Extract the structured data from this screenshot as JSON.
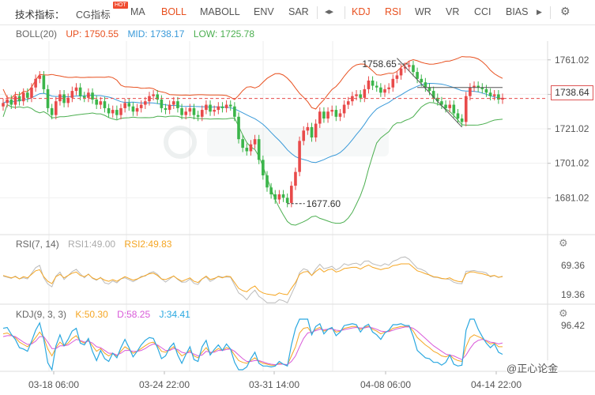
{
  "toolbar": {
    "label": "技术指标：",
    "items": [
      {
        "name": "cg",
        "label": "CG指标",
        "active": false
      },
      {
        "name": "ma",
        "label": "MA",
        "active": false
      },
      {
        "name": "boll",
        "label": "BOLL",
        "active": true
      },
      {
        "name": "maboll",
        "label": "MABOLL",
        "active": false
      },
      {
        "name": "env",
        "label": "ENV",
        "active": false
      },
      {
        "name": "sar",
        "label": "SAR",
        "active": false
      },
      {
        "name": "kdj",
        "label": "KDJ",
        "active": true
      },
      {
        "name": "rsi",
        "label": "RSI",
        "active": true
      },
      {
        "name": "wr",
        "label": "WR",
        "active": false
      },
      {
        "name": "vr",
        "label": "VR",
        "active": false
      },
      {
        "name": "cci",
        "label": "CCI",
        "active": false
      },
      {
        "name": "bias",
        "label": "BIAS",
        "active": false
      }
    ],
    "hot_badge": "HOT",
    "nav_icon": "left-right-arrows-icon",
    "next_icon": "play-right-icon",
    "settings_icon": "gear-icon"
  },
  "boll": {
    "title": "BOLL(20)",
    "up_label": "UP: 1750.55",
    "mid_label": "MID: 1738.17",
    "low_label": "LOW: 1725.78",
    "colors": {
      "up": "#e8501f",
      "mid": "#3a9ad9",
      "low": "#4caf50",
      "rise": "#e84a4a",
      "fall": "#3bb54a"
    },
    "y_ticks": [
      "1761.02",
      "1741.02",
      "1721.02",
      "1701.02",
      "1681.02"
    ],
    "current_price": "1738.64",
    "high_mark": "1758.65",
    "low_mark": "1677.60"
  },
  "rsi": {
    "title": "RSI(7, 14)",
    "rsi1": "RSI1:49.00",
    "rsi2": "RSI2:49.83",
    "colors": {
      "rsi1": "#bbbbbb",
      "rsi2": "#f5a623"
    },
    "y_ticks": [
      "69.36",
      "19.36"
    ]
  },
  "kdj": {
    "title": "KDJ(9, 3, 3)",
    "k_label": "K:50.30",
    "d_label": "D:58.25",
    "j_label": "J:34.41",
    "colors": {
      "k": "#f5a623",
      "d": "#d95ad9",
      "j": "#2aa8e0"
    },
    "y_ticks": [
      "96.42"
    ]
  },
  "x_ticks": [
    "03-18 06:00",
    "03-24 22:00",
    "03-31 14:00",
    "04-08 06:00",
    "04-14 22:00"
  ],
  "watermark": "@正心论金",
  "chart_data": {
    "type": "candlestick",
    "series_note": "",
    "y_axis_main": [
      1681.02,
      1761.02
    ],
    "close": [
      1736,
      1738,
      1735,
      1740,
      1737,
      1742,
      1739,
      1745,
      1750,
      1752,
      1744,
      1733,
      1729,
      1737,
      1741,
      1736,
      1739,
      1743,
      1745,
      1740,
      1739,
      1742,
      1738,
      1735,
      1737,
      1733,
      1730,
      1732,
      1729,
      1733,
      1736,
      1734,
      1731,
      1733,
      1735,
      1737,
      1740,
      1741,
      1738,
      1733,
      1732,
      1735,
      1737,
      1733,
      1729,
      1731,
      1733,
      1729,
      1728,
      1732,
      1735,
      1731,
      1732,
      1734,
      1733,
      1735,
      1734,
      1728,
      1715,
      1710,
      1708,
      1712,
      1715,
      1703,
      1694,
      1687,
      1683,
      1680,
      1683,
      1681,
      1678,
      1688,
      1696,
      1714,
      1720,
      1722,
      1716,
      1724,
      1731,
      1727,
      1731,
      1732,
      1728,
      1730,
      1735,
      1737,
      1740,
      1741,
      1739,
      1744,
      1749,
      1746,
      1745,
      1742,
      1744,
      1745,
      1750,
      1752,
      1756,
      1757,
      1758,
      1754,
      1750,
      1748,
      1745,
      1743,
      1739,
      1737,
      1735,
      1733,
      1735,
      1730,
      1727,
      1725,
      1740,
      1745,
      1746,
      1745,
      1744,
      1742,
      1740,
      1741,
      1738,
      1739
    ],
    "rsi2": [
      52,
      50,
      48,
      50,
      46,
      50,
      48,
      54,
      60,
      62,
      50,
      42,
      38,
      50,
      54,
      48,
      52,
      56,
      58,
      52,
      50,
      54,
      48,
      45,
      48,
      44,
      42,
      45,
      42,
      46,
      50,
      47,
      44,
      46,
      49,
      52,
      55,
      56,
      52,
      46,
      45,
      48,
      51,
      46,
      42,
      45,
      48,
      42,
      40,
      46,
      51,
      45,
      47,
      50,
      48,
      51,
      50,
      40,
      30,
      26,
      24,
      30,
      34,
      26,
      22,
      20,
      19,
      18,
      22,
      20,
      19,
      30,
      40,
      54,
      58,
      59,
      52,
      59,
      64,
      58,
      62,
      63,
      58,
      60,
      64,
      65,
      66,
      66,
      63,
      67,
      70,
      66,
      64,
      62,
      64,
      65,
      69,
      70,
      72,
      72,
      72,
      66,
      60,
      58,
      55,
      53,
      50,
      49,
      47,
      46,
      48,
      44,
      42,
      41,
      55,
      58,
      58,
      56,
      55,
      53,
      51,
      52,
      49,
      50
    ],
    "k": [
      78,
      80,
      75,
      70,
      60,
      55,
      50,
      58,
      70,
      82,
      70,
      45,
      30,
      48,
      60,
      52,
      58,
      68,
      74,
      62,
      58,
      64,
      52,
      40,
      46,
      36,
      30,
      36,
      30,
      40,
      50,
      44,
      36,
      40,
      46,
      52,
      58,
      60,
      52,
      40,
      38,
      44,
      50,
      40,
      30,
      35,
      42,
      30,
      26,
      38,
      48,
      36,
      40,
      46,
      42,
      48,
      45,
      32,
      20,
      16,
      14,
      20,
      26,
      18,
      14,
      12,
      10,
      10,
      14,
      12,
      10,
      30,
      50,
      80,
      90,
      92,
      80,
      88,
      92,
      84,
      88,
      90,
      82,
      84,
      90,
      92,
      94,
      94,
      88,
      92,
      95,
      88,
      84,
      78,
      82,
      84,
      90,
      92,
      94,
      94,
      94,
      84,
      70,
      62,
      54,
      48,
      40,
      36,
      30,
      28,
      32,
      24,
      20,
      18,
      50,
      70,
      76,
      72,
      68,
      62,
      56,
      58,
      50,
      50
    ],
    "d": [
      72,
      74,
      74,
      72,
      66,
      60,
      55,
      56,
      62,
      72,
      72,
      60,
      46,
      46,
      52,
      52,
      54,
      60,
      66,
      64,
      60,
      62,
      58,
      50,
      48,
      42,
      36,
      36,
      32,
      36,
      42,
      42,
      40,
      40,
      42,
      46,
      52,
      56,
      54,
      48,
      42,
      42,
      46,
      44,
      38,
      36,
      38,
      34,
      30,
      32,
      40,
      38,
      38,
      42,
      42,
      44,
      45,
      40,
      32,
      24,
      18,
      18,
      20,
      20,
      17,
      14,
      12,
      11,
      12,
      12,
      11,
      18,
      30,
      50,
      68,
      80,
      82,
      85,
      88,
      87,
      88,
      89,
      86,
      85,
      87,
      89,
      91,
      92,
      91,
      91,
      93,
      91,
      88,
      84,
      83,
      83,
      86,
      89,
      91,
      93,
      93,
      90,
      84,
      76,
      68,
      60,
      52,
      46,
      40,
      34,
      32,
      30,
      26,
      22,
      32,
      46,
      58,
      64,
      66,
      64,
      60,
      59,
      56,
      58.25
    ]
  }
}
